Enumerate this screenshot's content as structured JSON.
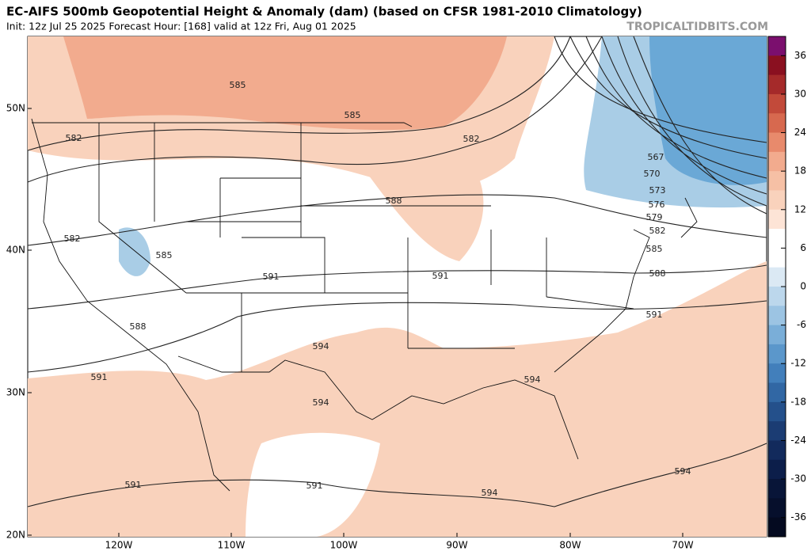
{
  "header": {
    "title": "EC-AIFS 500mb Geopotential Height & Anomaly (dam) (based on CFSR 1981-2010 Climatology)",
    "subtitle": "Init: 12z Jul 25 2025   Forecast Hour: [168]   valid at 12z Fri, Aug 01 2025",
    "watermark": "TROPICALTIDBITS.COM"
  },
  "map": {
    "lat_labels": [
      "50N",
      "40N",
      "30N",
      "20N"
    ],
    "lon_labels": [
      "120W",
      "110W",
      "100W",
      "90W",
      "80W",
      "70W"
    ],
    "contour_labels": [
      585,
      585,
      582,
      582,
      588,
      567,
      570,
      573,
      576,
      579,
      582,
      585,
      588,
      582,
      585,
      591,
      591,
      591,
      588,
      594,
      591,
      594,
      594,
      591,
      591,
      594,
      594
    ]
  },
  "colorbar": {
    "ticks": [
      36,
      30,
      24,
      18,
      12,
      6,
      0,
      -6,
      -12,
      -18,
      -24,
      -30,
      -36
    ]
  }
}
